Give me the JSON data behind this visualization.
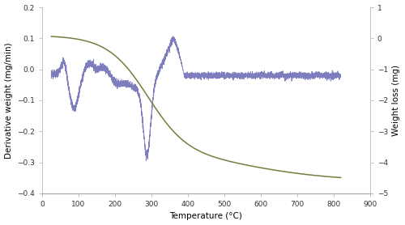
{
  "title": "",
  "xlabel": "Temperature (°C)",
  "ylabel_left": "Derivative weight (mg/min)",
  "ylabel_right": "Weight loss (mg)",
  "xlim": [
    0,
    900
  ],
  "ylim_left": [
    -0.4,
    0.2
  ],
  "ylim_right": [
    -5.0,
    1.0
  ],
  "dtg_color": "#7777bb",
  "tga_color": "#7a7a40",
  "background_color": "#ffffff",
  "label_fontsize": 7.5,
  "tick_fontsize": 6.5
}
